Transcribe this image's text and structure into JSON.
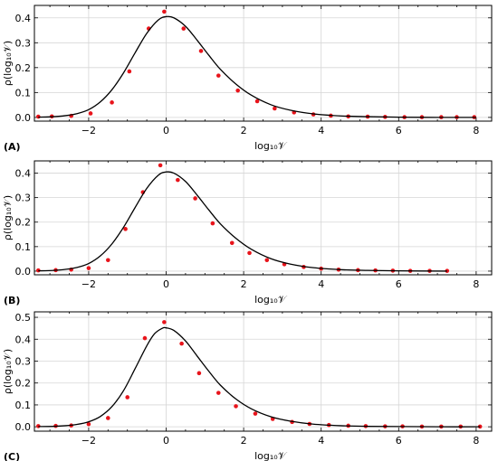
{
  "chart_data": [
    {
      "type": "scatter",
      "panel_label": "(A)",
      "xlabel": "log₁₀𝒱",
      "ylabel": "ρ(log₁₀𝒱)",
      "xlim": [
        -3.4,
        8.4
      ],
      "ylim": [
        -0.015,
        0.45
      ],
      "xticks": [
        -2,
        0,
        2,
        4,
        6,
        8
      ],
      "yticks": [
        0.0,
        0.1,
        0.2,
        0.3,
        0.4
      ],
      "ytick_labels": [
        "0.0",
        "0.1",
        "0.2",
        "0.3",
        "0.4"
      ],
      "grid": true,
      "series": [
        {
          "style": "points",
          "color": "#e8141b",
          "x": [
            -3.3,
            -2.95,
            -2.45,
            -1.95,
            -1.4,
            -0.95,
            -0.45,
            -0.05,
            0.45,
            0.9,
            1.35,
            1.85,
            2.35,
            2.8,
            3.3,
            3.8,
            4.25,
            4.7,
            5.2,
            5.65,
            6.15,
            6.6,
            7.1,
            7.5,
            7.95
          ],
          "y": [
            0.003,
            0.004,
            0.006,
            0.016,
            0.06,
            0.185,
            0.357,
            0.425,
            0.357,
            0.267,
            0.168,
            0.108,
            0.065,
            0.036,
            0.02,
            0.012,
            0.007,
            0.004,
            0.003,
            0.002,
            0.001,
            0.001,
            0.001,
            0.001,
            0.001
          ]
        },
        {
          "style": "line",
          "color": "#000000",
          "x": [
            -3.3,
            -2.9,
            -2.6,
            -2.3,
            -2.0,
            -1.7,
            -1.4,
            -1.1,
            -0.8,
            -0.5,
            -0.2,
            0.0,
            0.2,
            0.5,
            0.8,
            1.1,
            1.4,
            1.8,
            2.2,
            2.7,
            3.2,
            3.8,
            4.5,
            5.2,
            6.0,
            7.0,
            8.0
          ],
          "y": [
            0.001,
            0.003,
            0.007,
            0.015,
            0.031,
            0.062,
            0.111,
            0.179,
            0.26,
            0.338,
            0.392,
            0.405,
            0.4,
            0.366,
            0.31,
            0.25,
            0.193,
            0.134,
            0.089,
            0.051,
            0.029,
            0.014,
            0.006,
            0.003,
            0.001,
            0.0,
            0.0
          ]
        }
      ]
    },
    {
      "type": "scatter",
      "panel_label": "(B)",
      "xlabel": "log₁₀𝒱",
      "ylabel": "ρ(log₁₀𝒱)",
      "xlim": [
        -3.4,
        8.4
      ],
      "ylim": [
        -0.015,
        0.45
      ],
      "xticks": [
        -2,
        0,
        2,
        4,
        6,
        8
      ],
      "yticks": [
        0.0,
        0.1,
        0.2,
        0.3,
        0.4
      ],
      "ytick_labels": [
        "0.0",
        "0.1",
        "0.2",
        "0.3",
        "0.4"
      ],
      "grid": true,
      "series": [
        {
          "style": "points",
          "color": "#e8141b",
          "x": [
            -3.3,
            -2.85,
            -2.45,
            -2.0,
            -1.5,
            -1.05,
            -0.6,
            -0.15,
            0.3,
            0.75,
            1.2,
            1.7,
            2.15,
            2.6,
            3.05,
            3.55,
            4.0,
            4.45,
            4.95,
            5.4,
            5.85,
            6.3,
            6.8,
            7.25
          ],
          "y": [
            0.003,
            0.004,
            0.006,
            0.012,
            0.045,
            0.172,
            0.322,
            0.432,
            0.372,
            0.297,
            0.195,
            0.115,
            0.074,
            0.045,
            0.028,
            0.017,
            0.01,
            0.006,
            0.004,
            0.003,
            0.002,
            0.001,
            0.001,
            0.001
          ]
        },
        {
          "style": "line",
          "color": "#000000",
          "x": [
            -3.3,
            -2.9,
            -2.6,
            -2.3,
            -2.0,
            -1.7,
            -1.4,
            -1.1,
            -0.8,
            -0.5,
            -0.2,
            0.0,
            0.2,
            0.5,
            0.8,
            1.1,
            1.4,
            1.8,
            2.2,
            2.7,
            3.2,
            3.8,
            4.5,
            5.2,
            6.0,
            7.25
          ],
          "y": [
            0.001,
            0.003,
            0.007,
            0.015,
            0.031,
            0.062,
            0.111,
            0.179,
            0.26,
            0.338,
            0.392,
            0.405,
            0.4,
            0.366,
            0.31,
            0.25,
            0.193,
            0.134,
            0.089,
            0.051,
            0.029,
            0.014,
            0.006,
            0.003,
            0.001,
            0.0
          ]
        }
      ]
    },
    {
      "type": "scatter",
      "panel_label": "(C)",
      "xlabel": "log₁₀𝒱",
      "ylabel": "ρ(log₁₀𝒱)",
      "xlim": [
        -3.4,
        8.4
      ],
      "ylim": [
        -0.02,
        0.525
      ],
      "xticks": [
        -2,
        0,
        2,
        4,
        6,
        8
      ],
      "yticks": [
        0.0,
        0.1,
        0.2,
        0.3,
        0.4,
        0.5
      ],
      "ytick_labels": [
        "0.0",
        "0.1",
        "0.2",
        "0.3",
        "0.4",
        "0.5"
      ],
      "grid": true,
      "series": [
        {
          "style": "points",
          "color": "#e8141b",
          "x": [
            -3.3,
            -2.85,
            -2.45,
            -2.0,
            -1.5,
            -1.0,
            -0.55,
            -0.05,
            0.4,
            0.85,
            1.35,
            1.8,
            2.3,
            2.75,
            3.25,
            3.7,
            4.2,
            4.7,
            5.15,
            5.65,
            6.1,
            6.6,
            7.1,
            7.6,
            8.1
          ],
          "y": [
            0.003,
            0.004,
            0.006,
            0.012,
            0.04,
            0.135,
            0.405,
            0.478,
            0.38,
            0.245,
            0.155,
            0.094,
            0.06,
            0.036,
            0.022,
            0.013,
            0.008,
            0.005,
            0.003,
            0.002,
            0.002,
            0.001,
            0.001,
            0.001,
            0.001
          ]
        },
        {
          "style": "line",
          "color": "#000000",
          "x": [
            -3.3,
            -2.9,
            -2.6,
            -2.3,
            -2.0,
            -1.7,
            -1.4,
            -1.1,
            -0.8,
            -0.5,
            -0.3,
            -0.1,
            0.0,
            0.2,
            0.5,
            0.8,
            1.1,
            1.4,
            1.8,
            2.2,
            2.7,
            3.2,
            3.8,
            4.5,
            5.2,
            6.0,
            7.0,
            8.1
          ],
          "y": [
            0.001,
            0.002,
            0.005,
            0.011,
            0.023,
            0.047,
            0.092,
            0.165,
            0.266,
            0.37,
            0.425,
            0.45,
            0.452,
            0.44,
            0.392,
            0.323,
            0.254,
            0.19,
            0.127,
            0.082,
            0.046,
            0.026,
            0.012,
            0.005,
            0.002,
            0.001,
            0.0,
            0.0
          ]
        }
      ]
    }
  ]
}
